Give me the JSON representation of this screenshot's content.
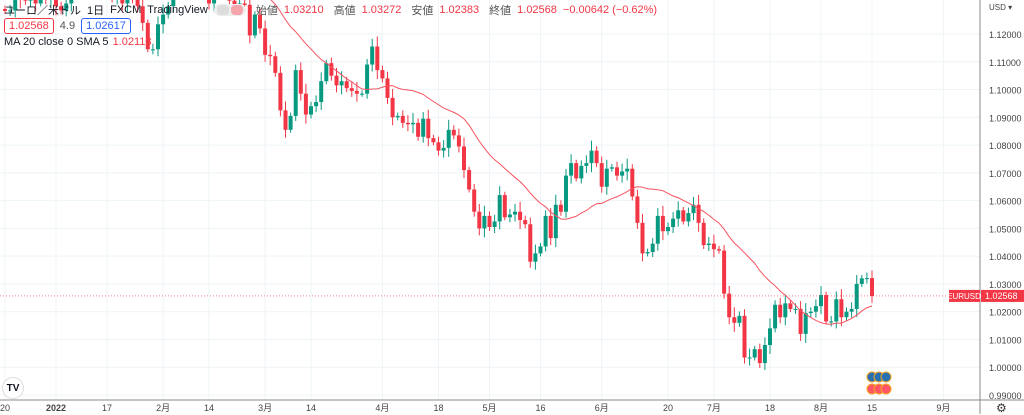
{
  "header": {
    "symbol": "ユーロ／米ドル",
    "interval": "1日",
    "exchange": "FXCM",
    "source": "TradingView",
    "open_label": "始値",
    "open": "1.03210",
    "high_label": "高値",
    "high": "1.03272",
    "low_label": "安値",
    "low": "1.02383",
    "close_label": "終値",
    "close": "1.02568",
    "change": "−0.00642 (−0.62%)"
  },
  "trade": {
    "sell": "1.02568",
    "spread": "4.9",
    "buy": "1.02617"
  },
  "indicator": {
    "label": "MA 20 close 0 SMA 5",
    "value": "1.02113"
  },
  "axis": {
    "currency": "USD ▾",
    "symbol_tag": "EURUSD",
    "last_price": "1.02568"
  },
  "colors": {
    "up": "#089981",
    "down": "#f23645",
    "ma": "#f7525f",
    "grid": "#eef4f7"
  },
  "chart_data": {
    "type": "candlestick",
    "title": "EURUSD 1D",
    "ylim": [
      0.99,
      1.125
    ],
    "y_ticks": [
      "1.12000",
      "1.11000",
      "1.10000",
      "1.09000",
      "1.08000",
      "1.07000",
      "1.06000",
      "1.05000",
      "1.04000",
      "1.03000",
      "1.02000",
      "1.01000",
      "1.00000",
      "0.99000"
    ],
    "x_ticks": [
      {
        "i": 0,
        "label": "20"
      },
      {
        "i": 10,
        "label": "2022"
      },
      {
        "i": 20,
        "label": "17"
      },
      {
        "i": 31,
        "label": "2月"
      },
      {
        "i": 40,
        "label": "14"
      },
      {
        "i": 51,
        "label": "3月"
      },
      {
        "i": 60,
        "label": "14"
      },
      {
        "i": 74,
        "label": "4月"
      },
      {
        "i": 85,
        "label": "18"
      },
      {
        "i": 95,
        "label": "5月"
      },
      {
        "i": 105,
        "label": "16"
      },
      {
        "i": 117,
        "label": "6月"
      },
      {
        "i": 130,
        "label": "20"
      },
      {
        "i": 139,
        "label": "7月"
      },
      {
        "i": 150,
        "label": "18"
      },
      {
        "i": 160,
        "label": "8月"
      },
      {
        "i": 170,
        "label": "15"
      },
      {
        "i": 184,
        "label": "9月"
      }
    ],
    "first_open": 1.129,
    "closes": [
      1.1283,
      1.1285,
      1.133,
      1.1325,
      1.132,
      1.133,
      1.131,
      1.135,
      1.1325,
      1.137,
      1.13,
      1.1285,
      1.131,
      1.136,
      1.136,
      1.1365,
      1.144,
      1.145,
      1.141,
      1.141,
      1.141,
      1.1325,
      1.1345,
      1.131,
      1.1345,
      1.1325,
      1.13,
      1.124,
      1.1145,
      1.1145,
      1.1235,
      1.127,
      1.13,
      1.144,
      1.145,
      1.144,
      1.1415,
      1.142,
      1.1425,
      1.135,
      1.131,
      1.136,
      1.1375,
      1.136,
      1.132,
      1.1305,
      1.131,
      1.1305,
      1.1195,
      1.127,
      1.122,
      1.1125,
      1.112,
      1.106,
      1.0925,
      1.0855,
      1.0905,
      1.107,
      1.0985,
      1.091,
      1.094,
      1.0955,
      1.103,
      1.1095,
      1.105,
      1.1015,
      1.103,
      1.1005,
      1.0995,
      1.0985,
      1.0985,
      1.109,
      1.1155,
      1.107,
      1.104,
      1.097,
      1.09,
      1.0905,
      1.088,
      1.0875,
      1.088,
      1.083,
      1.0895,
      1.0825,
      1.081,
      1.078,
      1.079,
      1.0855,
      1.0835,
      1.0795,
      1.071,
      1.064,
      1.056,
      1.05,
      1.0545,
      1.0505,
      1.0525,
      1.062,
      1.054,
      1.055,
      1.056,
      1.053,
      1.0515,
      1.038,
      1.041,
      1.0435,
      1.0545,
      1.0465,
      1.0585,
      1.056,
      1.069,
      1.0735,
      1.068,
      1.0725,
      1.0735,
      1.078,
      1.0735,
      1.065,
      1.0715,
      1.072,
      1.069,
      1.0705,
      1.0715,
      1.0615,
      1.052,
      1.041,
      1.0415,
      1.0445,
      1.0545,
      1.049,
      1.0505,
      1.0535,
      1.0565,
      1.0525,
      1.0555,
      1.0585,
      1.052,
      1.044,
      1.0445,
      1.0425,
      1.042,
      1.0265,
      1.018,
      1.016,
      1.0185,
      1.0035,
      1.0035,
      1.0065,
      1.0015,
      1.008,
      1.014,
      1.0225,
      1.018,
      1.023,
      1.021,
      1.021,
      1.012,
      1.0195,
      1.02,
      1.022,
      1.026,
      1.0165,
      1.0165,
      1.0245,
      1.018,
      1.02,
      1.021,
      1.03,
      1.032,
      1.0321,
      1.02568
    ],
    "ma_period": 20,
    "last_price": 1.02568
  }
}
